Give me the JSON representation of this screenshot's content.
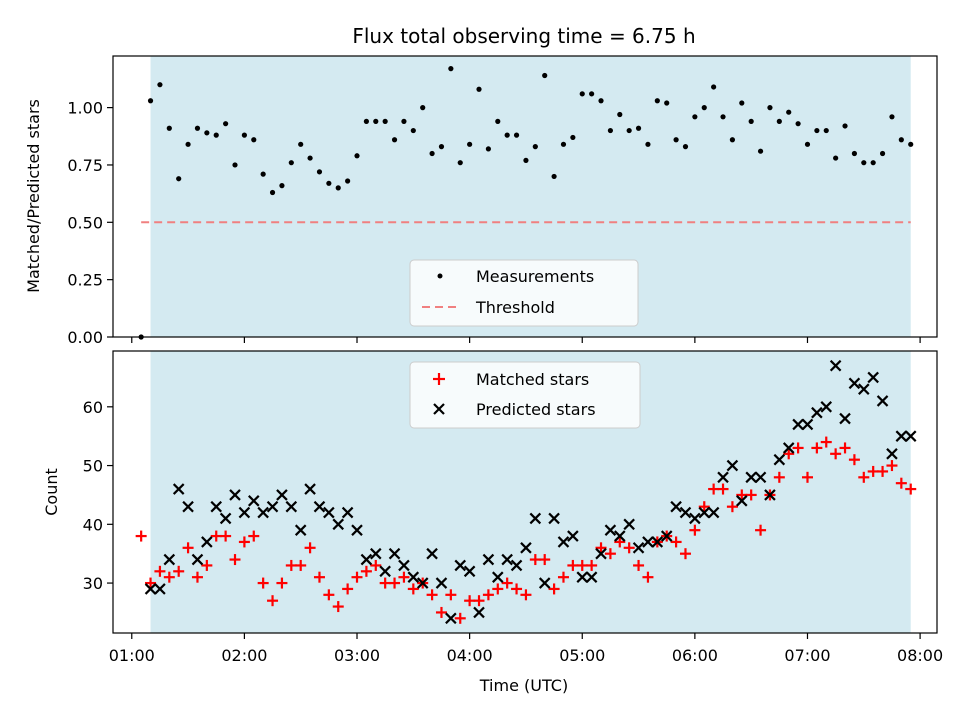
{
  "chart_data": [
    {
      "type": "scatter",
      "title": "Flux total observing time = 6.75 h",
      "xlabel": "",
      "ylabel": "Matched/Predicted stars",
      "ylim": [
        0.0,
        1.225
      ],
      "yticks": [
        "0.00",
        "0.25",
        "0.50",
        "0.75",
        "1.00"
      ],
      "ytick_values": [
        0.0,
        0.25,
        0.5,
        0.75,
        1.0
      ],
      "legend": {
        "placement": "lower-center",
        "entries": [
          "Measurements",
          "Threshold"
        ]
      },
      "grid": false,
      "colors": {
        "measurements": "#000000",
        "threshold": "#f08080",
        "observing_span": "#d4eaf1"
      },
      "observing_span": {
        "start": "01:10",
        "end": "07:55"
      },
      "threshold": {
        "name": "Threshold",
        "value": 0.5,
        "start": "01:05",
        "end": "07:55"
      },
      "series": [
        {
          "name": "Measurements",
          "points": [
            [
              "01:05",
              0.0
            ],
            [
              "01:10",
              1.03
            ],
            [
              "01:15",
              1.1
            ],
            [
              "01:20",
              0.91
            ],
            [
              "01:25",
              0.69
            ],
            [
              "01:30",
              0.84
            ],
            [
              "01:35",
              0.91
            ],
            [
              "01:40",
              0.89
            ],
            [
              "01:45",
              0.88
            ],
            [
              "01:50",
              0.93
            ],
            [
              "01:55",
              0.75
            ],
            [
              "02:00",
              0.88
            ],
            [
              "02:05",
              0.86
            ],
            [
              "02:10",
              0.71
            ],
            [
              "02:15",
              0.63
            ],
            [
              "02:20",
              0.66
            ],
            [
              "02:25",
              0.76
            ],
            [
              "02:30",
              0.84
            ],
            [
              "02:35",
              0.78
            ],
            [
              "02:40",
              0.72
            ],
            [
              "02:45",
              0.67
            ],
            [
              "02:50",
              0.65
            ],
            [
              "02:55",
              0.68
            ],
            [
              "03:00",
              0.79
            ],
            [
              "03:05",
              0.94
            ],
            [
              "03:10",
              0.94
            ],
            [
              "03:15",
              0.94
            ],
            [
              "03:20",
              0.86
            ],
            [
              "03:25",
              0.94
            ],
            [
              "03:30",
              0.9
            ],
            [
              "03:35",
              1.0
            ],
            [
              "03:40",
              0.8
            ],
            [
              "03:45",
              0.83
            ],
            [
              "03:50",
              1.17
            ],
            [
              "03:55",
              0.76
            ],
            [
              "04:00",
              0.84
            ],
            [
              "04:05",
              1.08
            ],
            [
              "04:10",
              0.82
            ],
            [
              "04:15",
              0.94
            ],
            [
              "04:20",
              0.88
            ],
            [
              "04:25",
              0.88
            ],
            [
              "04:30",
              0.77
            ],
            [
              "04:35",
              0.83
            ],
            [
              "04:40",
              1.14
            ],
            [
              "04:45",
              0.7
            ],
            [
              "04:50",
              0.84
            ],
            [
              "04:55",
              0.87
            ],
            [
              "05:00",
              1.06
            ],
            [
              "05:05",
              1.06
            ],
            [
              "05:10",
              1.03
            ],
            [
              "05:15",
              0.9
            ],
            [
              "05:20",
              0.97
            ],
            [
              "05:25",
              0.9
            ],
            [
              "05:30",
              0.91
            ],
            [
              "05:35",
              0.84
            ],
            [
              "05:40",
              1.03
            ],
            [
              "05:45",
              1.02
            ],
            [
              "05:50",
              0.86
            ],
            [
              "05:55",
              0.83
            ],
            [
              "06:00",
              0.96
            ],
            [
              "06:05",
              1.0
            ],
            [
              "06:10",
              1.09
            ],
            [
              "06:15",
              0.96
            ],
            [
              "06:20",
              0.86
            ],
            [
              "06:25",
              1.02
            ],
            [
              "06:30",
              0.94
            ],
            [
              "06:35",
              0.81
            ],
            [
              "06:40",
              1.0
            ],
            [
              "06:45",
              0.94
            ],
            [
              "06:50",
              0.98
            ],
            [
              "06:55",
              0.93
            ],
            [
              "07:00",
              0.84
            ],
            [
              "07:05",
              0.9
            ],
            [
              "07:10",
              0.9
            ],
            [
              "07:15",
              0.78
            ],
            [
              "07:20",
              0.92
            ],
            [
              "07:25",
              0.8
            ],
            [
              "07:30",
              0.76
            ],
            [
              "07:35",
              0.76
            ],
            [
              "07:40",
              0.8
            ],
            [
              "07:45",
              0.96
            ],
            [
              "07:50",
              0.86
            ],
            [
              "07:55",
              0.84
            ]
          ]
        }
      ]
    },
    {
      "type": "scatter",
      "title": "",
      "xlabel": "Time (UTC)",
      "ylabel": "Count",
      "ylim": [
        21.5,
        69.5
      ],
      "yticks": [
        "30",
        "40",
        "50",
        "60"
      ],
      "ytick_values": [
        30,
        40,
        50,
        60
      ],
      "xlim": [
        "00:50",
        "08:09"
      ],
      "xticks": [
        "01:00",
        "02:00",
        "03:00",
        "04:00",
        "05:00",
        "06:00",
        "07:00",
        "08:00"
      ],
      "legend": {
        "placement": "upper-center",
        "entries": [
          "Matched stars",
          "Predicted stars"
        ]
      },
      "grid": false,
      "colors": {
        "matched": "#ff0000",
        "predicted": "#000000",
        "observing_span": "#d4eaf1"
      },
      "observing_span": {
        "start": "01:10",
        "end": "07:55"
      },
      "series": [
        {
          "name": "Matched stars",
          "marker": "plus",
          "points": [
            [
              "01:05",
              38
            ],
            [
              "01:10",
              30
            ],
            [
              "01:15",
              32
            ],
            [
              "01:20",
              31
            ],
            [
              "01:25",
              32
            ],
            [
              "01:30",
              36
            ],
            [
              "01:35",
              31
            ],
            [
              "01:40",
              33
            ],
            [
              "01:45",
              38
            ],
            [
              "01:50",
              38
            ],
            [
              "01:55",
              34
            ],
            [
              "02:00",
              37
            ],
            [
              "02:05",
              38
            ],
            [
              "02:10",
              30
            ],
            [
              "02:15",
              27
            ],
            [
              "02:20",
              30
            ],
            [
              "02:25",
              33
            ],
            [
              "02:30",
              33
            ],
            [
              "02:35",
              36
            ],
            [
              "02:40",
              31
            ],
            [
              "02:45",
              28
            ],
            [
              "02:50",
              26
            ],
            [
              "02:55",
              29
            ],
            [
              "03:00",
              31
            ],
            [
              "03:05",
              32
            ],
            [
              "03:10",
              33
            ],
            [
              "03:15",
              30
            ],
            [
              "03:20",
              30
            ],
            [
              "03:25",
              31
            ],
            [
              "03:30",
              29
            ],
            [
              "03:35",
              30
            ],
            [
              "03:40",
              28
            ],
            [
              "03:45",
              25
            ],
            [
              "03:50",
              28
            ],
            [
              "03:55",
              24
            ],
            [
              "04:00",
              27
            ],
            [
              "04:05",
              27
            ],
            [
              "04:10",
              28
            ],
            [
              "04:15",
              29
            ],
            [
              "04:20",
              30
            ],
            [
              "04:25",
              29
            ],
            [
              "04:30",
              28
            ],
            [
              "04:35",
              34
            ],
            [
              "04:40",
              34
            ],
            [
              "04:45",
              29
            ],
            [
              "04:50",
              31
            ],
            [
              "04:55",
              33
            ],
            [
              "05:00",
              33
            ],
            [
              "05:05",
              33
            ],
            [
              "05:10",
              36
            ],
            [
              "05:15",
              35
            ],
            [
              "05:20",
              37
            ],
            [
              "05:25",
              36
            ],
            [
              "05:30",
              33
            ],
            [
              "05:35",
              31
            ],
            [
              "05:40",
              37
            ],
            [
              "05:45",
              38
            ],
            [
              "05:50",
              37
            ],
            [
              "05:55",
              35
            ],
            [
              "06:00",
              39
            ],
            [
              "06:05",
              43
            ],
            [
              "06:10",
              46
            ],
            [
              "06:15",
              46
            ],
            [
              "06:20",
              43
            ],
            [
              "06:25",
              45
            ],
            [
              "06:30",
              45
            ],
            [
              "06:35",
              39
            ],
            [
              "06:40",
              45
            ],
            [
              "06:45",
              48
            ],
            [
              "06:50",
              52
            ],
            [
              "06:55",
              53
            ],
            [
              "07:00",
              48
            ],
            [
              "07:05",
              53
            ],
            [
              "07:10",
              54
            ],
            [
              "07:15",
              52
            ],
            [
              "07:20",
              53
            ],
            [
              "07:25",
              51
            ],
            [
              "07:30",
              48
            ],
            [
              "07:35",
              49
            ],
            [
              "07:40",
              49
            ],
            [
              "07:45",
              50
            ],
            [
              "07:50",
              47
            ],
            [
              "07:55",
              46
            ]
          ]
        },
        {
          "name": "Predicted stars",
          "marker": "x",
          "points": [
            [
              "01:10",
              29
            ],
            [
              "01:15",
              29
            ],
            [
              "01:20",
              34
            ],
            [
              "01:25",
              46
            ],
            [
              "01:30",
              43
            ],
            [
              "01:35",
              34
            ],
            [
              "01:40",
              37
            ],
            [
              "01:45",
              43
            ],
            [
              "01:50",
              41
            ],
            [
              "01:55",
              45
            ],
            [
              "02:00",
              42
            ],
            [
              "02:05",
              44
            ],
            [
              "02:10",
              42
            ],
            [
              "02:15",
              43
            ],
            [
              "02:20",
              45
            ],
            [
              "02:25",
              43
            ],
            [
              "02:30",
              39
            ],
            [
              "02:35",
              46
            ],
            [
              "02:40",
              43
            ],
            [
              "02:45",
              42
            ],
            [
              "02:50",
              40
            ],
            [
              "02:55",
              42
            ],
            [
              "03:00",
              39
            ],
            [
              "03:05",
              34
            ],
            [
              "03:10",
              35
            ],
            [
              "03:15",
              32
            ],
            [
              "03:20",
              35
            ],
            [
              "03:25",
              33
            ],
            [
              "03:30",
              31
            ],
            [
              "03:35",
              30
            ],
            [
              "03:40",
              35
            ],
            [
              "03:45",
              30
            ],
            [
              "03:50",
              24
            ],
            [
              "03:55",
              33
            ],
            [
              "04:00",
              32
            ],
            [
              "04:05",
              25
            ],
            [
              "04:10",
              34
            ],
            [
              "04:15",
              31
            ],
            [
              "04:20",
              34
            ],
            [
              "04:25",
              33
            ],
            [
              "04:30",
              36
            ],
            [
              "04:35",
              41
            ],
            [
              "04:40",
              30
            ],
            [
              "04:45",
              41
            ],
            [
              "04:50",
              37
            ],
            [
              "04:55",
              38
            ],
            [
              "05:00",
              31
            ],
            [
              "05:05",
              31
            ],
            [
              "05:10",
              35
            ],
            [
              "05:15",
              39
            ],
            [
              "05:20",
              38
            ],
            [
              "05:25",
              40
            ],
            [
              "05:30",
              36
            ],
            [
              "05:35",
              37
            ],
            [
              "05:40",
              37
            ],
            [
              "05:45",
              38
            ],
            [
              "05:50",
              43
            ],
            [
              "05:55",
              42
            ],
            [
              "06:00",
              41
            ],
            [
              "06:05",
              42
            ],
            [
              "06:10",
              42
            ],
            [
              "06:15",
              48
            ],
            [
              "06:20",
              50
            ],
            [
              "06:25",
              44
            ],
            [
              "06:30",
              48
            ],
            [
              "06:35",
              48
            ],
            [
              "06:40",
              45
            ],
            [
              "06:45",
              51
            ],
            [
              "06:50",
              53
            ],
            [
              "06:55",
              57
            ],
            [
              "07:00",
              57
            ],
            [
              "07:05",
              59
            ],
            [
              "07:10",
              60
            ],
            [
              "07:15",
              67
            ],
            [
              "07:20",
              58
            ],
            [
              "07:25",
              64
            ],
            [
              "07:30",
              63
            ],
            [
              "07:35",
              65
            ],
            [
              "07:40",
              61
            ],
            [
              "07:45",
              52
            ],
            [
              "07:50",
              55
            ],
            [
              "07:55",
              55
            ]
          ]
        }
      ]
    }
  ]
}
